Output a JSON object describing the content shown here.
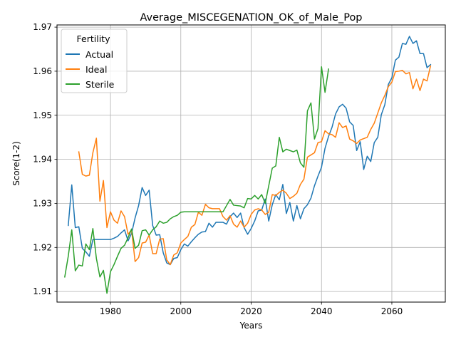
{
  "chart_data": {
    "type": "line",
    "title": "Average_MISCEGENATION_OK_of_Male_Pop",
    "xlabel": "Years",
    "ylabel": "Score(1-2)",
    "xlim": [
      1964.8,
      2075.2
    ],
    "ylim": [
      1.9076,
      1.9705
    ],
    "xticks": [
      1980,
      2000,
      2020,
      2040,
      2060
    ],
    "yticks": [
      1.91,
      1.92,
      1.93,
      1.94,
      1.95,
      1.96,
      1.97
    ],
    "ytick_labels": [
      "1.91",
      "1.92",
      "1.93",
      "1.94",
      "1.95",
      "1.96",
      "1.97"
    ],
    "grid": true,
    "legend": {
      "title": "Fertility",
      "position": "top-left"
    },
    "series": [
      {
        "name": "Actual",
        "color": "#1f77b4",
        "points": [
          [
            1968,
            1.925
          ],
          [
            1969,
            1.9342
          ],
          [
            1970,
            1.9245
          ],
          [
            1971,
            1.9247
          ],
          [
            1972,
            1.9198
          ],
          [
            1973,
            1.919
          ],
          [
            1974,
            1.918
          ],
          [
            1975,
            1.9218
          ],
          [
            1976,
            1.9218
          ],
          [
            1977,
            1.9218
          ],
          [
            1978,
            1.9218
          ],
          [
            1979,
            1.9218
          ],
          [
            1980,
            1.9218
          ],
          [
            1981,
            1.9221
          ],
          [
            1982,
            1.9225
          ],
          [
            1983,
            1.9233
          ],
          [
            1984,
            1.924
          ],
          [
            1985,
            1.9215
          ],
          [
            1986,
            1.9232
          ],
          [
            1987,
            1.9267
          ],
          [
            1988,
            1.9295
          ],
          [
            1989,
            1.9336
          ],
          [
            1990,
            1.9318
          ],
          [
            1991,
            1.933
          ],
          [
            1992,
            1.925
          ],
          [
            1993,
            1.9228
          ],
          [
            1994,
            1.9229
          ],
          [
            1995,
            1.9188
          ],
          [
            1996,
            1.9165
          ],
          [
            1997,
            1.9161
          ],
          [
            1998,
            1.9175
          ],
          [
            1999,
            1.9177
          ],
          [
            2000,
            1.9195
          ],
          [
            2001,
            1.9208
          ],
          [
            2002,
            1.9203
          ],
          [
            2003,
            1.9213
          ],
          [
            2004,
            1.9222
          ],
          [
            2005,
            1.923
          ],
          [
            2006,
            1.9235
          ],
          [
            2007,
            1.9236
          ],
          [
            2008,
            1.9255
          ],
          [
            2009,
            1.9246
          ],
          [
            2010,
            1.9257
          ],
          [
            2011,
            1.9257
          ],
          [
            2012,
            1.9257
          ],
          [
            2013,
            1.9253
          ],
          [
            2014,
            1.927
          ],
          [
            2015,
            1.9278
          ],
          [
            2016,
            1.9268
          ],
          [
            2017,
            1.9278
          ],
          [
            2018,
            1.9245
          ],
          [
            2019,
            1.923
          ],
          [
            2020,
            1.9243
          ],
          [
            2021,
            1.926
          ],
          [
            2022,
            1.9283
          ],
          [
            2023,
            1.9285
          ],
          [
            2024,
            1.931
          ],
          [
            2025,
            1.926
          ],
          [
            2026,
            1.9297
          ],
          [
            2027,
            1.932
          ],
          [
            2028,
            1.9308
          ],
          [
            2029,
            1.9343
          ],
          [
            2030,
            1.9277
          ],
          [
            2031,
            1.9302
          ],
          [
            2032,
            1.926
          ],
          [
            2033,
            1.9295
          ],
          [
            2034,
            1.9265
          ],
          [
            2035,
            1.9288
          ],
          [
            2036,
            1.9297
          ],
          [
            2037,
            1.9312
          ],
          [
            2038,
            1.934
          ],
          [
            2039,
            1.9362
          ],
          [
            2040,
            1.9382
          ],
          [
            2041,
            1.9425
          ],
          [
            2042,
            1.9452
          ],
          [
            2043,
            1.9473
          ],
          [
            2044,
            1.9503
          ],
          [
            2045,
            1.9519
          ],
          [
            2046,
            1.9525
          ],
          [
            2047,
            1.9516
          ],
          [
            2048,
            1.9485
          ],
          [
            2049,
            1.9477
          ],
          [
            2050,
            1.942
          ],
          [
            2051,
            1.944
          ],
          [
            2052,
            1.9377
          ],
          [
            2053,
            1.9407
          ],
          [
            2054,
            1.9395
          ],
          [
            2055,
            1.9438
          ],
          [
            2056,
            1.945
          ],
          [
            2057,
            1.9501
          ],
          [
            2058,
            1.9524
          ],
          [
            2059,
            1.957
          ],
          [
            2060,
            1.9585
          ],
          [
            2061,
            1.9625
          ],
          [
            2062,
            1.9632
          ],
          [
            2063,
            1.9663
          ],
          [
            2064,
            1.9661
          ],
          [
            2065,
            1.9679
          ],
          [
            2066,
            1.9663
          ],
          [
            2067,
            1.9669
          ],
          [
            2068,
            1.964
          ],
          [
            2069,
            1.964
          ],
          [
            2070,
            1.9608
          ],
          [
            2071,
            1.9615
          ]
        ]
      },
      {
        "name": "Ideal",
        "color": "#ff7f0e",
        "points": [
          [
            1971,
            1.9417
          ],
          [
            1972,
            1.9366
          ],
          [
            1973,
            1.9362
          ],
          [
            1974,
            1.9364
          ],
          [
            1975,
            1.9415
          ],
          [
            1976,
            1.9448
          ],
          [
            1977,
            1.9305
          ],
          [
            1978,
            1.9352
          ],
          [
            1979,
            1.9245
          ],
          [
            1980,
            1.9281
          ],
          [
            1981,
            1.9262
          ],
          [
            1982,
            1.9255
          ],
          [
            1983,
            1.9283
          ],
          [
            1984,
            1.927
          ],
          [
            1985,
            1.923
          ],
          [
            1986,
            1.924
          ],
          [
            1987,
            1.9168
          ],
          [
            1988,
            1.9177
          ],
          [
            1989,
            1.921
          ],
          [
            1990,
            1.9212
          ],
          [
            1991,
            1.9228
          ],
          [
            1992,
            1.9186
          ],
          [
            1993,
            1.9186
          ],
          [
            1994,
            1.9219
          ],
          [
            1995,
            1.922
          ],
          [
            1996,
            1.9172
          ],
          [
            1997,
            1.9161
          ],
          [
            1998,
            1.9183
          ],
          [
            1999,
            1.9188
          ],
          [
            2000,
            1.921
          ],
          [
            2001,
            1.9218
          ],
          [
            2002,
            1.9225
          ],
          [
            2003,
            1.9246
          ],
          [
            2004,
            1.9252
          ],
          [
            2005,
            1.928
          ],
          [
            2006,
            1.9273
          ],
          [
            2007,
            1.9298
          ],
          [
            2008,
            1.929
          ],
          [
            2009,
            1.9288
          ],
          [
            2010,
            1.9288
          ],
          [
            2011,
            1.9288
          ],
          [
            2012,
            1.927
          ],
          [
            2013,
            1.9262
          ],
          [
            2014,
            1.9272
          ],
          [
            2015,
            1.9253
          ],
          [
            2016,
            1.9246
          ],
          [
            2017,
            1.926
          ],
          [
            2018,
            1.9246
          ],
          [
            2019,
            1.9255
          ],
          [
            2020,
            1.9275
          ],
          [
            2021,
            1.9285
          ],
          [
            2022,
            1.9288
          ],
          [
            2023,
            1.9285
          ],
          [
            2024,
            1.9275
          ],
          [
            2025,
            1.928
          ],
          [
            2026,
            1.932
          ],
          [
            2027,
            1.9318
          ],
          [
            2028,
            1.9325
          ],
          [
            2029,
            1.933
          ],
          [
            2030,
            1.9323
          ],
          [
            2031,
            1.9311
          ],
          [
            2032,
            1.9316
          ],
          [
            2033,
            1.9323
          ],
          [
            2034,
            1.9343
          ],
          [
            2035,
            1.9355
          ],
          [
            2036,
            1.9405
          ],
          [
            2037,
            1.941
          ],
          [
            2038,
            1.9415
          ],
          [
            2039,
            1.9438
          ],
          [
            2040,
            1.944
          ],
          [
            2041,
            1.9465
          ],
          [
            2042,
            1.9458
          ],
          [
            2043,
            1.9456
          ],
          [
            2044,
            1.945
          ],
          [
            2045,
            1.9483
          ],
          [
            2046,
            1.9472
          ],
          [
            2047,
            1.9476
          ],
          [
            2048,
            1.9446
          ],
          [
            2049,
            1.9442
          ],
          [
            2050,
            1.9436
          ],
          [
            2051,
            1.9444
          ],
          [
            2052,
            1.9447
          ],
          [
            2053,
            1.945
          ],
          [
            2054,
            1.9468
          ],
          [
            2055,
            1.9482
          ],
          [
            2056,
            1.9505
          ],
          [
            2057,
            1.9528
          ],
          [
            2058,
            1.9545
          ],
          [
            2059,
            1.9565
          ],
          [
            2060,
            1.9575
          ],
          [
            2061,
            1.9599
          ],
          [
            2062,
            1.96
          ],
          [
            2063,
            1.9602
          ],
          [
            2064,
            1.9594
          ],
          [
            2065,
            1.9597
          ],
          [
            2066,
            1.956
          ],
          [
            2067,
            1.9582
          ],
          [
            2068,
            1.9556
          ],
          [
            2069,
            1.9582
          ],
          [
            2070,
            1.9578
          ],
          [
            2071,
            1.9612
          ]
        ]
      },
      {
        "name": "Sterile",
        "color": "#2ca02c",
        "points": [
          [
            1967,
            1.9133
          ],
          [
            1968,
            1.918
          ],
          [
            1969,
            1.924
          ],
          [
            1970,
            1.9147
          ],
          [
            1971,
            1.916
          ],
          [
            1972,
            1.9158
          ],
          [
            1973,
            1.9208
          ],
          [
            1974,
            1.9195
          ],
          [
            1975,
            1.9243
          ],
          [
            1976,
            1.9175
          ],
          [
            1977,
            1.9133
          ],
          [
            1978,
            1.9148
          ],
          [
            1979,
            1.9096
          ],
          [
            1980,
            1.9145
          ],
          [
            1981,
            1.9161
          ],
          [
            1982,
            1.918
          ],
          [
            1983,
            1.9198
          ],
          [
            1984,
            1.9205
          ],
          [
            1985,
            1.9222
          ],
          [
            1986,
            1.9242
          ],
          [
            1987,
            1.9198
          ],
          [
            1988,
            1.9205
          ],
          [
            1989,
            1.9238
          ],
          [
            1990,
            1.924
          ],
          [
            1991,
            1.9228
          ],
          [
            1992,
            1.924
          ],
          [
            1993,
            1.9247
          ],
          [
            1994,
            1.926
          ],
          [
            1995,
            1.9255
          ],
          [
            1996,
            1.9257
          ],
          [
            1997,
            1.9265
          ],
          [
            1998,
            1.927
          ],
          [
            1999,
            1.9273
          ],
          [
            2000,
            1.928
          ],
          [
            2001,
            1.9281
          ],
          [
            2002,
            1.9281
          ],
          [
            2003,
            1.9281
          ],
          [
            2004,
            1.9281
          ],
          [
            2005,
            1.9281
          ],
          [
            2006,
            1.9281
          ],
          [
            2007,
            1.9281
          ],
          [
            2008,
            1.9281
          ],
          [
            2009,
            1.9281
          ],
          [
            2010,
            1.9281
          ],
          [
            2011,
            1.9281
          ],
          [
            2012,
            1.9281
          ],
          [
            2013,
            1.9295
          ],
          [
            2014,
            1.9309
          ],
          [
            2015,
            1.9296
          ],
          [
            2016,
            1.9295
          ],
          [
            2017,
            1.9294
          ],
          [
            2018,
            1.929
          ],
          [
            2019,
            1.9311
          ],
          [
            2020,
            1.931
          ],
          [
            2021,
            1.9318
          ],
          [
            2022,
            1.931
          ],
          [
            2023,
            1.932
          ],
          [
            2024,
            1.93
          ],
          [
            2025,
            1.934
          ],
          [
            2026,
            1.938
          ],
          [
            2027,
            1.9385
          ],
          [
            2028,
            1.945
          ],
          [
            2029,
            1.9417
          ],
          [
            2030,
            1.9423
          ],
          [
            2031,
            1.942
          ],
          [
            2032,
            1.9417
          ],
          [
            2033,
            1.9421
          ],
          [
            2034,
            1.9392
          ],
          [
            2035,
            1.9382
          ],
          [
            2036,
            1.951
          ],
          [
            2037,
            1.9528
          ],
          [
            2038,
            1.9446
          ],
          [
            2039,
            1.947
          ],
          [
            2040,
            1.961
          ],
          [
            2041,
            1.9552
          ],
          [
            2042,
            1.9605
          ]
        ]
      }
    ]
  }
}
